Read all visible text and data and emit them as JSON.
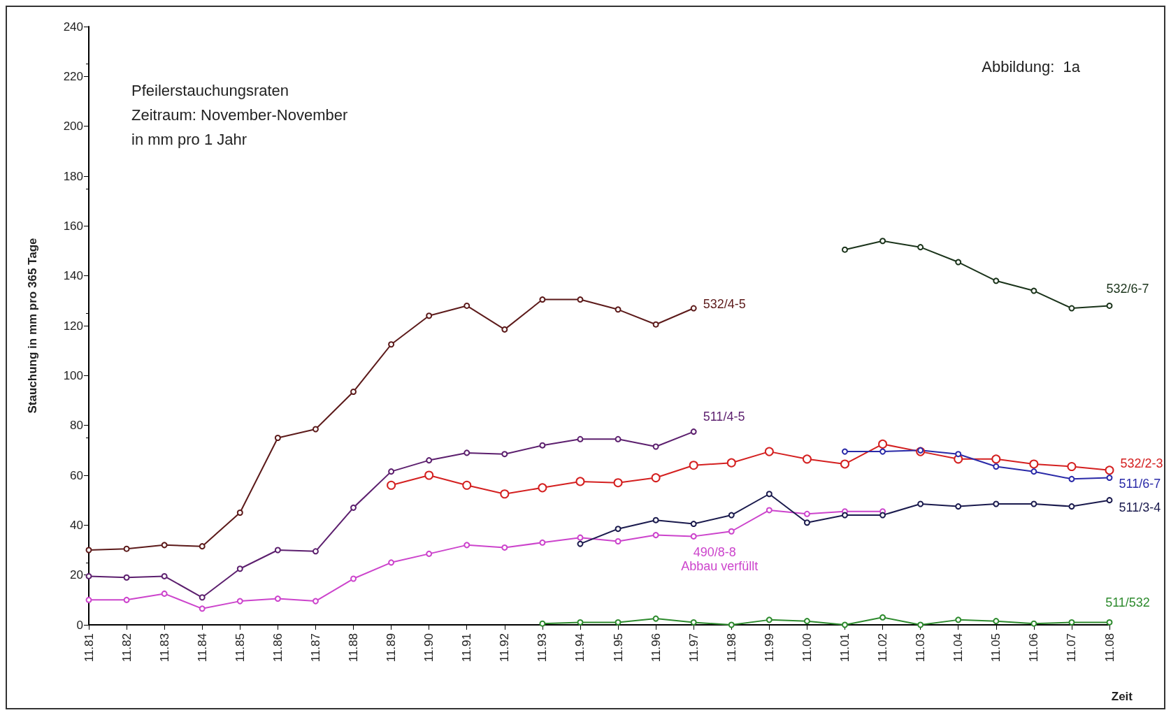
{
  "chart_data": {
    "type": "line",
    "title": "Pfeilerstauchungsraten",
    "subtitle": "Zeitraum: November-November",
    "annotations": [
      "in mm pro 1 Jahr",
      "Abbildung:  1a",
      "Abbau verfüllt"
    ],
    "xlabel": "Zeit",
    "ylabel": "Stauchung in mm pro 365 Tage",
    "categories": [
      "11.81",
      "11.82",
      "11.83",
      "11.84",
      "11.85",
      "11.86",
      "11.87",
      "11.88",
      "11.89",
      "11.90",
      "11.91",
      "11.92",
      "11.93",
      "11.94",
      "11.95",
      "11.96",
      "11.97",
      "11.98",
      "11.99",
      "11.00",
      "11.01",
      "11.02",
      "11.03",
      "11.04",
      "11.05",
      "11.06",
      "11.07",
      "11.08"
    ],
    "series": [
      {
        "name": "532/4-5",
        "color": "#5c1a1a",
        "values": [
          30,
          30.5,
          32,
          31.5,
          45,
          75,
          78.5,
          93.5,
          112.5,
          124,
          128,
          118.5,
          130.5,
          130.5,
          126.5,
          120.5,
          127,
          null,
          null,
          null,
          null,
          null,
          null,
          null,
          null,
          null,
          null,
          null
        ]
      },
      {
        "name": "511/4-5",
        "color": "#5c1f6e",
        "values": [
          19.5,
          19,
          19.5,
          11,
          22.5,
          30,
          29.5,
          47,
          61.5,
          66,
          69,
          68.5,
          72,
          74.5,
          74.5,
          71.5,
          77.5,
          null,
          null,
          null,
          null,
          null,
          null,
          null,
          null,
          null,
          null,
          null
        ]
      },
      {
        "name": "490/8-8",
        "color": "#cc44cc",
        "values": [
          10,
          10,
          12.5,
          6.5,
          9.5,
          10.5,
          9.5,
          18.5,
          25,
          28.5,
          32,
          31,
          33,
          35,
          33.5,
          36,
          35.5,
          37.5,
          46,
          44.5,
          45.5,
          45.5,
          null,
          null,
          null,
          null,
          null,
          null
        ]
      },
      {
        "name": "532/2-3",
        "color": "#d42020",
        "values": [
          null,
          null,
          null,
          null,
          null,
          null,
          null,
          null,
          56,
          60,
          56,
          52.5,
          55,
          57.5,
          57,
          59,
          64,
          65,
          69.5,
          66.5,
          64.5,
          72.5,
          69.5,
          66.5,
          66.5,
          64.5,
          63.5,
          62
        ]
      },
      {
        "name": "511/3-4",
        "color": "#1a1a4d",
        "values": [
          null,
          null,
          null,
          null,
          null,
          null,
          null,
          null,
          null,
          null,
          null,
          null,
          null,
          32.5,
          38.5,
          42,
          40.5,
          44,
          52.5,
          41,
          44,
          44,
          48.5,
          47.5,
          48.5,
          48.5,
          47.5,
          50
        ]
      },
      {
        "name": "511/6-7",
        "color": "#2a2aa8",
        "values": [
          null,
          null,
          null,
          null,
          null,
          null,
          null,
          null,
          null,
          null,
          null,
          null,
          null,
          null,
          null,
          null,
          null,
          null,
          null,
          null,
          69.5,
          69.5,
          70,
          68.5,
          63.5,
          61.5,
          58.5,
          59
        ]
      },
      {
        "name": "532/6-7",
        "color": "#1a331a",
        "values": [
          null,
          null,
          null,
          null,
          null,
          null,
          null,
          null,
          null,
          null,
          null,
          null,
          null,
          null,
          null,
          null,
          null,
          null,
          null,
          null,
          150.5,
          154,
          151.5,
          145.5,
          138,
          134,
          127,
          128
        ]
      },
      {
        "name": "511/532",
        "color": "#2e8b2e",
        "values": [
          null,
          null,
          null,
          null,
          null,
          null,
          null,
          null,
          null,
          null,
          null,
          null,
          0.5,
          1,
          1,
          2.5,
          1,
          0,
          2,
          1.5,
          0,
          3,
          0,
          2,
          1.5,
          0.5,
          1,
          1
        ]
      }
    ],
    "ylim": [
      0,
      240
    ],
    "yticks": [
      0,
      20,
      40,
      60,
      80,
      100,
      120,
      140,
      160,
      180,
      200,
      220,
      240
    ],
    "grid": false,
    "legend": false,
    "marker": "circle",
    "line_style": "solid"
  }
}
